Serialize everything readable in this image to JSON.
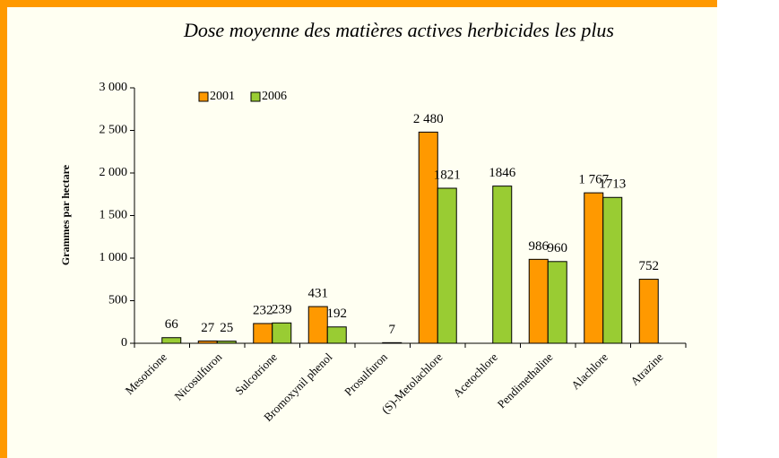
{
  "chart_data": {
    "type": "bar",
    "title": "Dose moyenne des matières actives herbicides les plus",
    "ylabel": "Grammes par hectare",
    "categories": [
      "Mesotrione",
      "Nicosulfuron",
      "Sulcotrione",
      "Bromoxynil phenol",
      "Prosulfuron",
      "(S)-Metolachlore",
      "Acetochlore",
      "Pendimethaline",
      "Alachlore",
      "Atrazine"
    ],
    "series": [
      {
        "name": "2001",
        "color": "#ff9900",
        "values": [
          null,
          27,
          232,
          431,
          null,
          2480,
          null,
          986,
          1767,
          752
        ],
        "value_labels": [
          null,
          "27",
          "232",
          "431",
          null,
          "2 480",
          null,
          "986",
          "1 767",
          "752"
        ]
      },
      {
        "name": "2006",
        "color": "#99cc33",
        "values": [
          66,
          25,
          239,
          192,
          7,
          1821,
          1846,
          960,
          1713,
          null
        ],
        "value_labels": [
          "66",
          "25",
          "239",
          "192",
          "7",
          "1821",
          "1846",
          "960",
          "1713",
          null
        ]
      }
    ],
    "ylim": [
      0,
      3000
    ],
    "yticks": [
      0,
      500,
      {
        "value": 1000,
        "label": "1 000"
      },
      {
        "value": 1500,
        "label": "1 500"
      },
      {
        "value": 2000,
        "label": "2 000"
      },
      {
        "value": 2500,
        "label": "2 500"
      },
      {
        "value": 3000,
        "label": "3 000"
      }
    ],
    "legend": "top-left"
  }
}
